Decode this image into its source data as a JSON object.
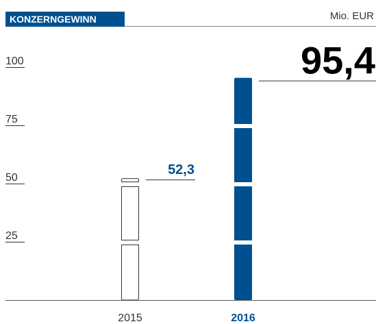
{
  "chart_data": {
    "type": "bar",
    "title": "KONZERNGEWINN",
    "unit": "Mio. EUR",
    "categories": [
      "2015",
      "2016"
    ],
    "values": [
      52.3,
      95.4
    ],
    "value_labels": [
      "52,3",
      "95,4"
    ],
    "color": "#00508f",
    "ylim": [
      0,
      100
    ],
    "yticks": [
      25,
      50,
      75,
      100
    ]
  }
}
